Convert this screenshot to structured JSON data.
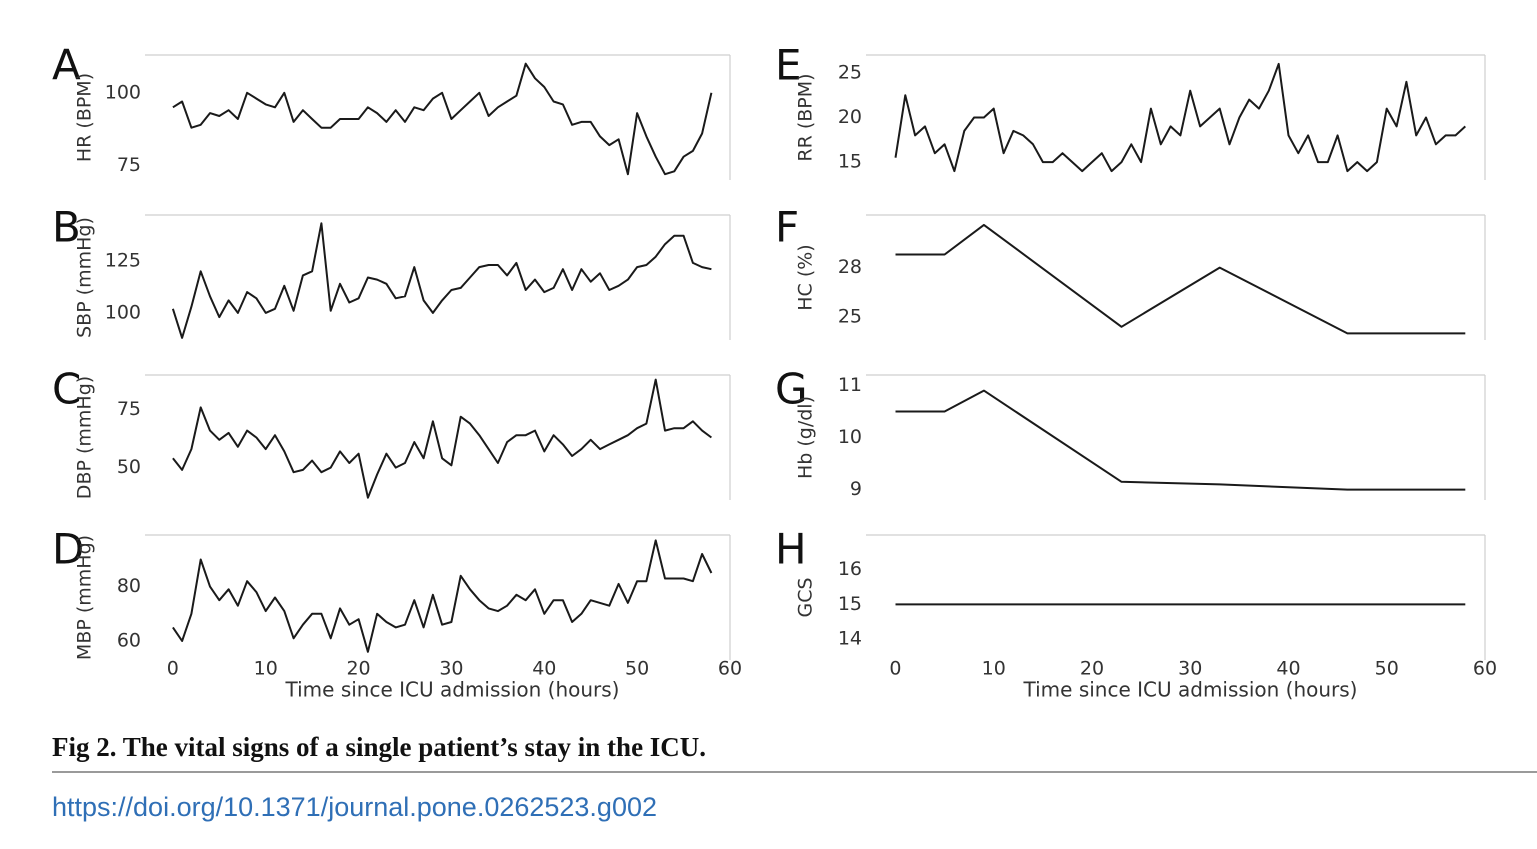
{
  "chart_data": [
    {
      "panel": "A",
      "type": "line",
      "ylabel": "HR (BPM)",
      "xlim": [
        -3,
        60
      ],
      "ylim": [
        70,
        113
      ],
      "yticks": [
        75,
        100
      ],
      "xticks": [],
      "xlabel": "",
      "x": [
        0,
        1,
        2,
        3,
        4,
        5,
        6,
        7,
        8,
        9,
        10,
        11,
        12,
        13,
        14,
        15,
        16,
        17,
        18,
        19,
        20,
        21,
        22,
        23,
        24,
        25,
        26,
        27,
        28,
        29,
        30,
        31,
        32,
        33,
        34,
        35,
        36,
        37,
        38,
        39,
        40,
        41,
        42,
        43,
        44,
        45,
        46,
        47,
        48,
        49,
        50,
        51,
        52,
        53,
        54,
        55,
        56,
        57,
        58
      ],
      "y": [
        95,
        97,
        88,
        89,
        93,
        92,
        94,
        91,
        100,
        98,
        96,
        95,
        100,
        90,
        94,
        91,
        88,
        88,
        91,
        91,
        91,
        95,
        93,
        90,
        94,
        90,
        95,
        94,
        98,
        100,
        91,
        94,
        97,
        100,
        92,
        95,
        97,
        99,
        110,
        105,
        102,
        97,
        96,
        89,
        90,
        90,
        85,
        82,
        84,
        72,
        93,
        85,
        78,
        72,
        73,
        78,
        80,
        86,
        100
      ]
    },
    {
      "panel": "B",
      "type": "line",
      "ylabel": "SBP (mmHg)",
      "xlim": [
        -3,
        60
      ],
      "ylim": [
        87,
        147
      ],
      "yticks": [
        100,
        125
      ],
      "xticks": [],
      "xlabel": "",
      "x": [
        0,
        1,
        2,
        3,
        4,
        5,
        6,
        7,
        8,
        9,
        10,
        11,
        12,
        13,
        14,
        15,
        16,
        17,
        18,
        19,
        20,
        21,
        22,
        23,
        24,
        25,
        26,
        27,
        28,
        29,
        30,
        31,
        32,
        33,
        34,
        35,
        36,
        37,
        38,
        39,
        40,
        41,
        42,
        43,
        44,
        45,
        46,
        47,
        48,
        49,
        50,
        51,
        52,
        53,
        54,
        55,
        56,
        57,
        58
      ],
      "y": [
        102,
        88,
        103,
        120,
        108,
        98,
        106,
        100,
        110,
        107,
        100,
        102,
        113,
        101,
        118,
        120,
        143,
        101,
        114,
        105,
        107,
        117,
        116,
        114,
        107,
        108,
        122,
        106,
        100,
        106,
        111,
        112,
        117,
        122,
        123,
        123,
        118,
        124,
        111,
        116,
        110,
        112,
        121,
        111,
        121,
        115,
        119,
        111,
        113,
        116,
        122,
        123,
        127,
        133,
        137,
        137,
        124,
        122,
        121
      ]
    },
    {
      "panel": "C",
      "type": "line",
      "ylabel": "DBP (mmHg)",
      "xlim": [
        -3,
        60
      ],
      "ylim": [
        36,
        90
      ],
      "yticks": [
        50,
        75
      ],
      "xticks": [],
      "xlabel": "",
      "x": [
        0,
        1,
        2,
        3,
        4,
        5,
        6,
        7,
        8,
        9,
        10,
        11,
        12,
        13,
        14,
        15,
        16,
        17,
        18,
        19,
        20,
        21,
        22,
        23,
        24,
        25,
        26,
        27,
        28,
        29,
        30,
        31,
        32,
        33,
        34,
        35,
        36,
        37,
        38,
        39,
        40,
        41,
        42,
        43,
        44,
        45,
        46,
        47,
        48,
        49,
        50,
        51,
        52,
        53,
        54,
        55,
        56,
        57,
        58
      ],
      "y": [
        54,
        49,
        58,
        76,
        66,
        62,
        65,
        59,
        66,
        63,
        58,
        64,
        57,
        48,
        49,
        53,
        48,
        50,
        57,
        52,
        56,
        37,
        47,
        56,
        50,
        52,
        61,
        54,
        70,
        54,
        51,
        72,
        69,
        64,
        58,
        52,
        61,
        64,
        64,
        66,
        57,
        64,
        60,
        55,
        58,
        62,
        58,
        60,
        62,
        64,
        67,
        69,
        88,
        66,
        67,
        67,
        70,
        66,
        63
      ]
    },
    {
      "panel": "D",
      "type": "line",
      "ylabel": "MBP (mmHg)",
      "xlim": [
        -3,
        60
      ],
      "ylim": [
        53,
        99
      ],
      "yticks": [
        60,
        80
      ],
      "xticks": [
        0,
        10,
        20,
        30,
        40,
        50,
        60
      ],
      "xlabel": "Time since ICU admission (hours)",
      "x": [
        0,
        1,
        2,
        3,
        4,
        5,
        6,
        7,
        8,
        9,
        10,
        11,
        12,
        13,
        14,
        15,
        16,
        17,
        18,
        19,
        20,
        21,
        22,
        23,
        24,
        25,
        26,
        27,
        28,
        29,
        30,
        31,
        32,
        33,
        34,
        35,
        36,
        37,
        38,
        39,
        40,
        41,
        42,
        43,
        44,
        45,
        46,
        47,
        48,
        49,
        50,
        51,
        52,
        53,
        54,
        55,
        56,
        57,
        58
      ],
      "y": [
        65,
        60,
        70,
        90,
        80,
        75,
        79,
        73,
        82,
        78,
        71,
        76,
        71,
        61,
        66,
        70,
        70,
        61,
        72,
        66,
        68,
        56,
        70,
        67,
        65,
        66,
        75,
        65,
        77,
        66,
        67,
        84,
        79,
        75,
        72,
        71,
        73,
        77,
        75,
        79,
        70,
        75,
        75,
        67,
        70,
        75,
        74,
        73,
        81,
        74,
        82,
        82,
        97,
        83,
        83,
        83,
        82,
        92,
        85
      ]
    },
    {
      "panel": "E",
      "type": "line",
      "ylabel": "RR (BPM)",
      "xlim": [
        -3,
        60
      ],
      "ylim": [
        13,
        27
      ],
      "yticks": [
        15,
        20,
        25
      ],
      "xticks": [],
      "xlabel": "",
      "x": [
        0,
        1,
        2,
        3,
        4,
        5,
        6,
        7,
        8,
        9,
        10,
        11,
        12,
        13,
        14,
        15,
        16,
        17,
        18,
        19,
        20,
        21,
        22,
        23,
        24,
        25,
        26,
        27,
        28,
        29,
        30,
        31,
        32,
        33,
        34,
        35,
        36,
        37,
        38,
        39,
        40,
        41,
        42,
        43,
        44,
        45,
        46,
        47,
        48,
        49,
        50,
        51,
        52,
        53,
        54,
        55,
        56,
        57,
        58
      ],
      "y": [
        15.5,
        22.5,
        18,
        19,
        16,
        17,
        14,
        18.5,
        20,
        20,
        21,
        16,
        18.5,
        18,
        17,
        15,
        15,
        16,
        15,
        14,
        15,
        16,
        14,
        15,
        17,
        15,
        21,
        17,
        19,
        18,
        23,
        19,
        20,
        21,
        17,
        20,
        22,
        21,
        23,
        26,
        18,
        16,
        18,
        15,
        15,
        18,
        14,
        15,
        14,
        15,
        21,
        19,
        24,
        18,
        20,
        17,
        18,
        18,
        19
      ]
    },
    {
      "panel": "F",
      "type": "line",
      "ylabel": "HC (%)",
      "xlim": [
        -3,
        60
      ],
      "ylim": [
        23.6,
        31.2
      ],
      "yticks": [
        25,
        28
      ],
      "xticks": [],
      "xlabel": "",
      "x": [
        0,
        5,
        9,
        23,
        33,
        46,
        58
      ],
      "y": [
        28.8,
        28.8,
        30.6,
        24.4,
        28.0,
        24.0,
        24.0
      ]
    },
    {
      "panel": "G",
      "type": "line",
      "ylabel": "Hb (g/dl)",
      "xlim": [
        -3,
        60
      ],
      "ylim": [
        8.8,
        11.2
      ],
      "yticks": [
        9,
        10,
        11
      ],
      "xticks": [],
      "xlabel": "",
      "x": [
        0,
        5,
        9,
        23,
        33,
        46,
        58
      ],
      "y": [
        10.5,
        10.5,
        10.9,
        9.15,
        9.1,
        9.0,
        9.0
      ]
    },
    {
      "panel": "H",
      "type": "line",
      "ylabel": "GCS",
      "xlim": [
        -3,
        60
      ],
      "ylim": [
        13.4,
        17.0
      ],
      "yticks": [
        14,
        15,
        16
      ],
      "xticks": [
        0,
        10,
        20,
        30,
        40,
        50,
        60
      ],
      "xlabel": "Time since ICU admission (hours)",
      "x": [
        0,
        58
      ],
      "y": [
        15,
        15
      ]
    }
  ],
  "caption": "Fig 2.  The vital signs of a single patient’s stay in the ICU.",
  "doi": "https://doi.org/10.1371/journal.pone.0262523.g002"
}
